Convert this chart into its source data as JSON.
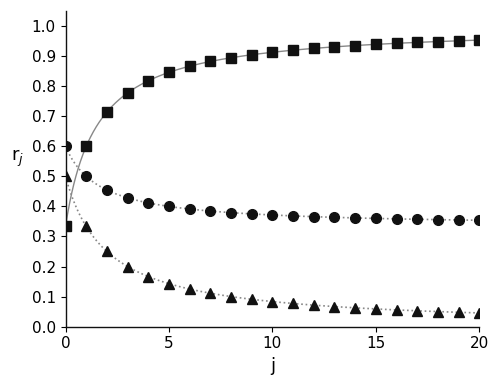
{
  "a": 0.5,
  "n": 2,
  "j_values": [
    0,
    1,
    2,
    3,
    4,
    5,
    6,
    7,
    8,
    9,
    10,
    11,
    12,
    13,
    14,
    15,
    16,
    17,
    18,
    19,
    20
  ],
  "xlabel": "j",
  "ylabel": "r$_j$",
  "xlim": [
    0,
    20
  ],
  "ylim": [
    0.0,
    1.05
  ],
  "yticks": [
    0.0,
    0.1,
    0.2,
    0.3,
    0.4,
    0.5,
    0.6,
    0.7,
    0.8,
    0.9,
    1.0
  ],
  "xticks": [
    0,
    5,
    10,
    15,
    20
  ],
  "line_color": "#888888",
  "marker_color": "#111111",
  "bg_color": "#ffffff",
  "figsize": [
    5.0,
    3.86
  ],
  "dpi": 100
}
